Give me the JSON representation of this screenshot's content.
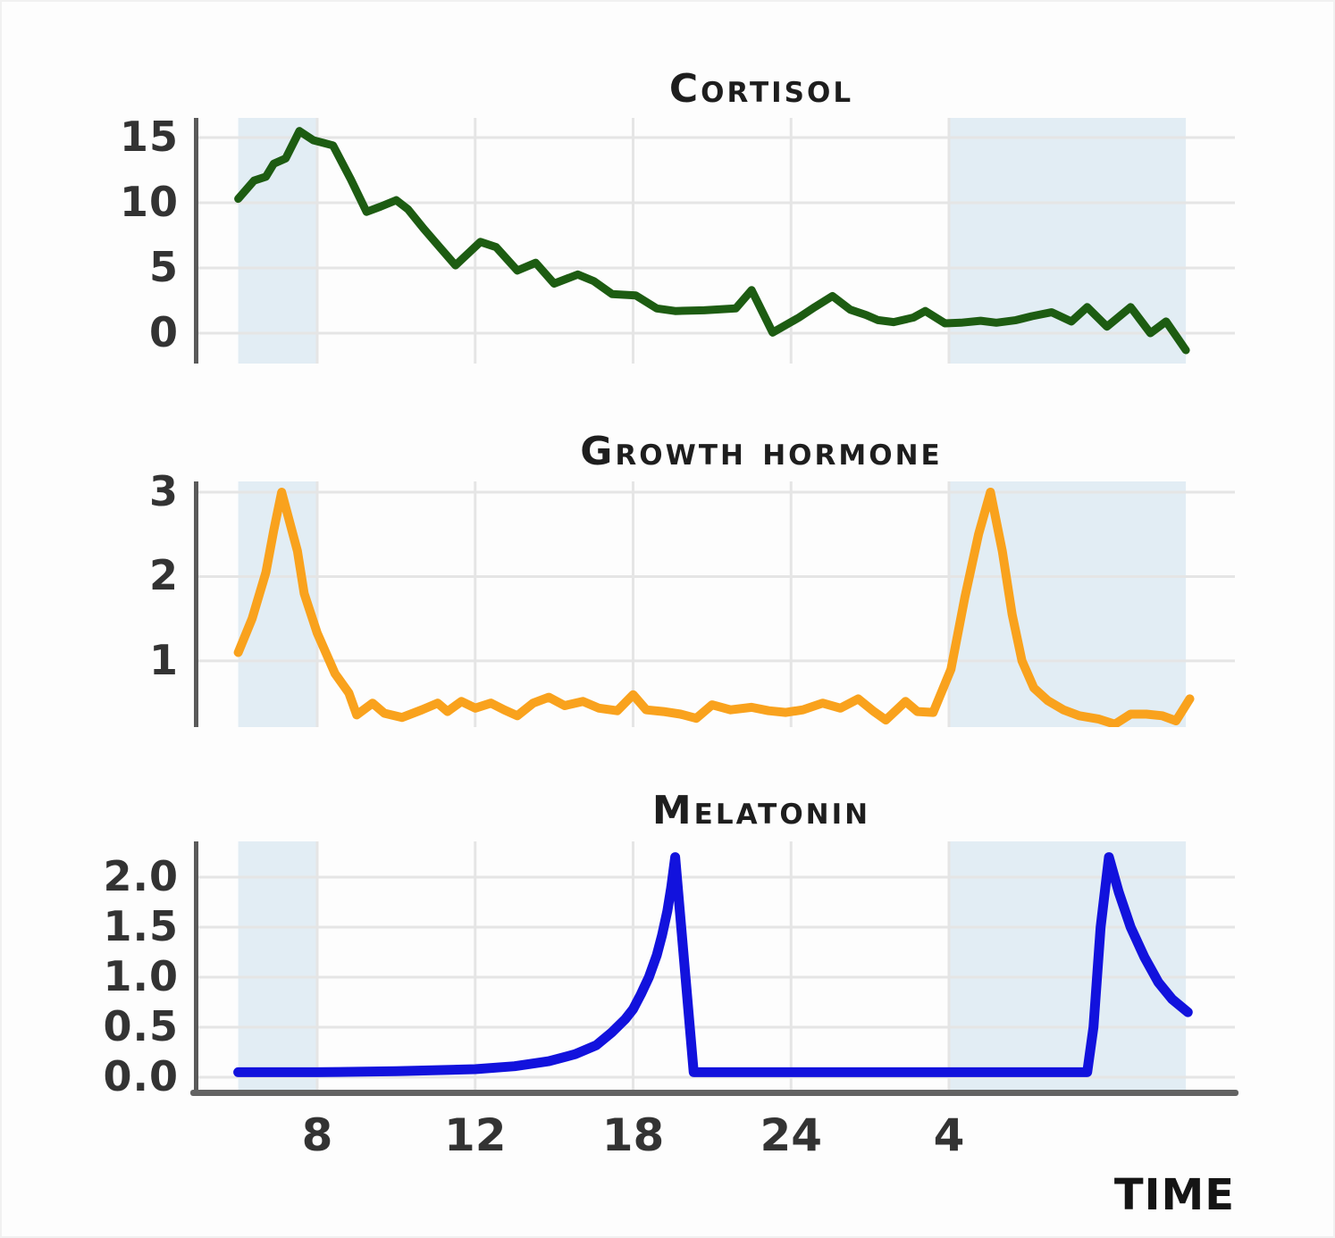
{
  "page": {
    "background": "#fdfdfd"
  },
  "xaxis": {
    "label": "TIME",
    "note": "x values are hour-of-day; values above 24 are the next morning (28 = 4 AM, 34 = 10 AM)",
    "tick_hours": [
      8,
      12,
      18,
      24,
      28
    ],
    "ticks": [
      {
        "hour": 8,
        "label": "8"
      },
      {
        "hour": 12,
        "label": "12"
      },
      {
        "hour": 18,
        "label": "18"
      },
      {
        "hour": 24,
        "label": "24"
      },
      {
        "hour": 28,
        "label": "4"
      }
    ]
  },
  "night_bands": [
    [
      6,
      8
    ],
    [
      28,
      34
    ]
  ],
  "style": {
    "night_band": "#e2edf4",
    "grid": "#e5e5e5",
    "axis": "#5a5a5a",
    "text": "#303030"
  },
  "chart_data": [
    {
      "id": "cortisol",
      "type": "line",
      "title": "Cortisol",
      "color": "#1d5c12",
      "ylim": [
        -2.33,
        16.51
      ],
      "yticks": [
        {
          "v": 15,
          "label": "15"
        },
        {
          "v": 10,
          "label": "10"
        },
        {
          "v": 5,
          "label": "5"
        },
        {
          "v": 0,
          "label": "0"
        }
      ],
      "points": [
        [
          6.0,
          10.3
        ],
        [
          6.4,
          11.7
        ],
        [
          6.7,
          12.0
        ],
        [
          6.9,
          13.0
        ],
        [
          7.2,
          13.4
        ],
        [
          7.55,
          15.5
        ],
        [
          7.9,
          14.8
        ],
        [
          8.4,
          14.4
        ],
        [
          8.85,
          11.8
        ],
        [
          9.25,
          9.3
        ],
        [
          9.6,
          9.7
        ],
        [
          10.0,
          10.2
        ],
        [
          10.3,
          9.5
        ],
        [
          10.7,
          8.0
        ],
        [
          11.1,
          6.6
        ],
        [
          11.5,
          5.2
        ],
        [
          12.2,
          7.0
        ],
        [
          12.8,
          6.6
        ],
        [
          13.6,
          4.8
        ],
        [
          14.3,
          5.4
        ],
        [
          15.0,
          3.8
        ],
        [
          15.9,
          4.5
        ],
        [
          16.5,
          4.0
        ],
        [
          17.2,
          3.0
        ],
        [
          18.1,
          2.9
        ],
        [
          18.9,
          1.9
        ],
        [
          19.6,
          1.7
        ],
        [
          20.7,
          1.75
        ],
        [
          21.9,
          1.9
        ],
        [
          22.5,
          3.3
        ],
        [
          23.3,
          0.05
        ],
        [
          24.2,
          1.2
        ],
        [
          24.6,
          2.0
        ],
        [
          25.05,
          2.85
        ],
        [
          25.5,
          1.8
        ],
        [
          25.9,
          1.4
        ],
        [
          26.2,
          1.0
        ],
        [
          26.6,
          0.85
        ],
        [
          27.1,
          1.2
        ],
        [
          27.4,
          1.7
        ],
        [
          27.9,
          0.75
        ],
        [
          28.3,
          0.8
        ],
        [
          28.8,
          0.95
        ],
        [
          29.2,
          0.8
        ],
        [
          29.7,
          1.0
        ],
        [
          30.1,
          1.3
        ],
        [
          30.6,
          1.6
        ],
        [
          31.1,
          0.9
        ],
        [
          31.5,
          2.0
        ],
        [
          32.0,
          0.5
        ],
        [
          32.6,
          2.0
        ],
        [
          33.1,
          0.0
        ],
        [
          33.5,
          0.9
        ],
        [
          34.0,
          -1.3
        ]
      ]
    },
    {
      "id": "growth-hormone",
      "type": "line",
      "title": "Growth hormone",
      "color": "#f9a21d",
      "ylim": [
        0.216,
        3.127
      ],
      "yticks": [
        {
          "v": 3,
          "label": "3"
        },
        {
          "v": 2,
          "label": "2"
        },
        {
          "v": 1,
          "label": "1"
        }
      ],
      "points": [
        [
          6.0,
          1.1
        ],
        [
          6.35,
          1.5
        ],
        [
          6.7,
          2.05
        ],
        [
          6.9,
          2.55
        ],
        [
          7.1,
          3.0
        ],
        [
          7.5,
          2.3
        ],
        [
          7.67,
          1.8
        ],
        [
          8.0,
          1.33
        ],
        [
          8.45,
          0.85
        ],
        [
          8.8,
          0.62
        ],
        [
          9.0,
          0.36
        ],
        [
          9.4,
          0.5
        ],
        [
          9.7,
          0.38
        ],
        [
          10.15,
          0.33
        ],
        [
          10.65,
          0.42
        ],
        [
          11.05,
          0.5
        ],
        [
          11.3,
          0.4
        ],
        [
          11.65,
          0.52
        ],
        [
          12.0,
          0.44
        ],
        [
          12.6,
          0.5
        ],
        [
          13.1,
          0.42
        ],
        [
          13.6,
          0.35
        ],
        [
          14.2,
          0.5
        ],
        [
          14.8,
          0.57
        ],
        [
          15.4,
          0.47
        ],
        [
          16.1,
          0.52
        ],
        [
          16.7,
          0.44
        ],
        [
          17.4,
          0.41
        ],
        [
          18.0,
          0.6
        ],
        [
          18.5,
          0.42
        ],
        [
          19.15,
          0.4
        ],
        [
          19.8,
          0.37
        ],
        [
          20.4,
          0.32
        ],
        [
          21.0,
          0.48
        ],
        [
          21.7,
          0.42
        ],
        [
          22.5,
          0.45
        ],
        [
          23.15,
          0.41
        ],
        [
          23.8,
          0.39
        ],
        [
          24.3,
          0.42
        ],
        [
          24.8,
          0.5
        ],
        [
          25.25,
          0.44
        ],
        [
          25.7,
          0.55
        ],
        [
          26.1,
          0.4
        ],
        [
          26.4,
          0.3
        ],
        [
          26.9,
          0.52
        ],
        [
          27.2,
          0.4
        ],
        [
          27.6,
          0.39
        ],
        [
          28.05,
          0.9
        ],
        [
          28.4,
          1.75
        ],
        [
          28.75,
          2.5
        ],
        [
          29.05,
          3.0
        ],
        [
          29.35,
          2.3
        ],
        [
          29.6,
          1.55
        ],
        [
          29.85,
          1.0
        ],
        [
          30.15,
          0.68
        ],
        [
          30.5,
          0.53
        ],
        [
          30.9,
          0.42
        ],
        [
          31.3,
          0.35
        ],
        [
          31.8,
          0.31
        ],
        [
          32.2,
          0.25
        ],
        [
          32.6,
          0.37
        ],
        [
          33.0,
          0.37
        ],
        [
          33.4,
          0.35
        ],
        [
          33.75,
          0.29
        ],
        [
          34.1,
          0.55
        ]
      ]
    },
    {
      "id": "melatonin",
      "type": "line",
      "title": "Melatonin",
      "color": "#1212dd",
      "ylim": [
        -0.125,
        2.357
      ],
      "yticks": [
        {
          "v": 2.0,
          "label": "2.0"
        },
        {
          "v": 1.5,
          "label": "1.5"
        },
        {
          "v": 1.0,
          "label": "1.0"
        },
        {
          "v": 0.5,
          "label": "0.5"
        },
        {
          "v": 0.0,
          "label": "0.0"
        }
      ],
      "points": [
        [
          6.0,
          0.05
        ],
        [
          8.0,
          0.05
        ],
        [
          10.0,
          0.06
        ],
        [
          12.0,
          0.08
        ],
        [
          13.5,
          0.11
        ],
        [
          14.8,
          0.16
        ],
        [
          15.8,
          0.23
        ],
        [
          16.6,
          0.32
        ],
        [
          17.2,
          0.45
        ],
        [
          17.7,
          0.58
        ],
        [
          18.0,
          0.68
        ],
        [
          18.3,
          0.83
        ],
        [
          18.6,
          1.0
        ],
        [
          18.9,
          1.22
        ],
        [
          19.1,
          1.42
        ],
        [
          19.3,
          1.66
        ],
        [
          19.45,
          1.9
        ],
        [
          19.6,
          2.2
        ],
        [
          20.3,
          0.05
        ],
        [
          22.0,
          0.05
        ],
        [
          24.0,
          0.05
        ],
        [
          26.0,
          0.05
        ],
        [
          28.0,
          0.05
        ],
        [
          30.0,
          0.05
        ],
        [
          31.5,
          0.05
        ],
        [
          31.66,
          0.5
        ],
        [
          31.84,
          1.5
        ],
        [
          32.05,
          2.2
        ],
        [
          32.3,
          1.85
        ],
        [
          32.6,
          1.5
        ],
        [
          32.95,
          1.2
        ],
        [
          33.3,
          0.95
        ],
        [
          33.65,
          0.78
        ],
        [
          34.05,
          0.65
        ]
      ]
    }
  ]
}
